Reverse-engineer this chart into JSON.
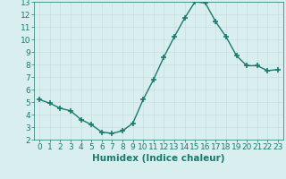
{
  "x": [
    0,
    1,
    2,
    3,
    4,
    5,
    6,
    7,
    8,
    9,
    10,
    11,
    12,
    13,
    14,
    15,
    16,
    17,
    18,
    19,
    20,
    21,
    22,
    23
  ],
  "y": [
    5.2,
    4.9,
    4.5,
    4.3,
    3.6,
    3.2,
    2.6,
    2.5,
    2.7,
    3.3,
    5.2,
    6.8,
    8.6,
    10.2,
    11.7,
    13.0,
    12.9,
    11.4,
    10.2,
    8.7,
    7.9,
    7.9,
    7.5,
    7.6
  ],
  "line_color": "#1a7a6e",
  "marker": "+",
  "marker_size": 4,
  "linewidth": 1.0,
  "bg_color": "#d9eeee",
  "grid_color": "#c8dede",
  "xlabel": "Humidex (Indice chaleur)",
  "xlim": [
    -0.5,
    23.5
  ],
  "ylim": [
    2,
    13
  ],
  "yticks": [
    2,
    3,
    4,
    5,
    6,
    7,
    8,
    9,
    10,
    11,
    12,
    13
  ],
  "xticks": [
    0,
    1,
    2,
    3,
    4,
    5,
    6,
    7,
    8,
    9,
    10,
    11,
    12,
    13,
    14,
    15,
    16,
    17,
    18,
    19,
    20,
    21,
    22,
    23
  ],
  "tick_fontsize": 6.5,
  "xlabel_fontsize": 7.5
}
